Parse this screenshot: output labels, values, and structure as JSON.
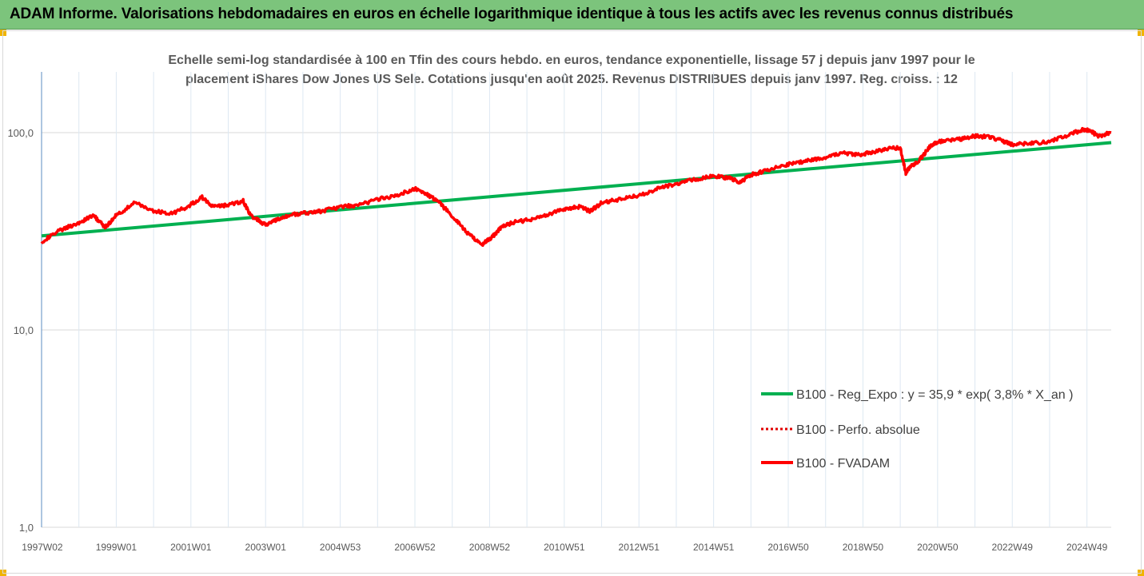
{
  "header": {
    "title": "ADAM Informe. Valorisations hebdomadaires en euros en échelle logarithmique identique à tous les actifs avec les revenus connus distribués"
  },
  "chart_data": {
    "type": "line",
    "title_line1": "Echelle semi-log standardisée à 100 en Tfin des cours hebdo. en euros, tendance exponentielle, lissage 57 j depuis janv 1997 pour le",
    "title_line2": "placement iShares Dow Jones US Sele. Cotations jusqu'en août 2025.  Revenus DISTRIBUES depuis janv 1997.  Reg. croiss. : 12",
    "y_scale": "log",
    "ylim": [
      1,
      200
    ],
    "ytick_labels": [
      "1,0",
      "10,0",
      "100,0"
    ],
    "ytick_values": [
      1,
      10,
      100
    ],
    "x_range": [
      1997.0,
      2025.65
    ],
    "xtick_labels": [
      "1997W02",
      "1999W01",
      "2001W01",
      "2003W01",
      "2004W53",
      "2006W52",
      "2008W52",
      "2010W51",
      "2012W51",
      "2014W51",
      "2016W50",
      "2018W50",
      "2020W50",
      "2022W49",
      "2024W49"
    ],
    "xtick_values": [
      1997.02,
      1999.0,
      2001.0,
      2003.0,
      2005.0,
      2007.0,
      2009.0,
      2011.0,
      2013.0,
      2015.0,
      2017.0,
      2019.0,
      2021.0,
      2023.0,
      2025.0
    ],
    "legend_position": "right",
    "grid": "vertical",
    "series": [
      {
        "name": "B100 - Reg_Expo : y = 35,9 * exp( 3,8% *  X_an )",
        "color": "#00b050",
        "style": "solid",
        "x": [
          1997.0,
          2025.65
        ],
        "values": [
          30,
          89
        ]
      },
      {
        "name": "B100 - Perfo. absolue",
        "color": "#e00000",
        "style": "dotted",
        "x": [],
        "values": []
      },
      {
        "name": "B100 - FVADAM",
        "color": "#ff0000",
        "style": "solid",
        "x": [
          1997.0,
          1997.5,
          1998.0,
          1998.4,
          1998.7,
          1999.0,
          1999.5,
          2000.0,
          2000.5,
          2000.9,
          2001.3,
          2001.6,
          2002.0,
          2002.4,
          2002.6,
          2003.0,
          2003.3,
          2003.6,
          2004.0,
          2004.5,
          2005.0,
          2005.5,
          2006.0,
          2006.5,
          2007.0,
          2007.3,
          2007.6,
          2008.0,
          2008.4,
          2008.8,
          2009.1,
          2009.3,
          2009.6,
          2010.0,
          2010.5,
          2011.0,
          2011.4,
          2011.7,
          2012.0,
          2012.5,
          2013.0,
          2013.5,
          2014.0,
          2014.5,
          2015.0,
          2015.4,
          2015.7,
          2016.0,
          2016.5,
          2017.0,
          2017.5,
          2018.0,
          2018.5,
          2018.9,
          2019.3,
          2019.7,
          2020.0,
          2020.15,
          2020.25,
          2020.5,
          2020.8,
          2021.0,
          2021.5,
          2022.0,
          2022.4,
          2022.8,
          2023.0,
          2023.5,
          2024.0,
          2024.5,
          2024.9,
          2025.1,
          2025.3,
          2025.65
        ],
        "values": [
          28,
          32,
          35,
          38,
          33,
          38,
          44,
          40,
          39,
          42,
          47,
          42,
          43,
          45,
          38,
          34,
          36,
          38,
          39,
          40,
          42,
          43,
          46,
          48,
          52,
          49,
          45,
          38,
          31,
          27,
          30,
          33,
          35,
          36,
          38,
          41,
          42,
          40,
          44,
          46,
          48,
          52,
          55,
          58,
          60,
          59,
          56,
          61,
          65,
          69,
          72,
          75,
          79,
          77,
          80,
          83,
          84,
          62,
          67,
          72,
          85,
          90,
          92,
          96,
          95,
          90,
          87,
          88,
          90,
          97,
          104,
          102,
          96,
          100
        ]
      }
    ]
  }
}
